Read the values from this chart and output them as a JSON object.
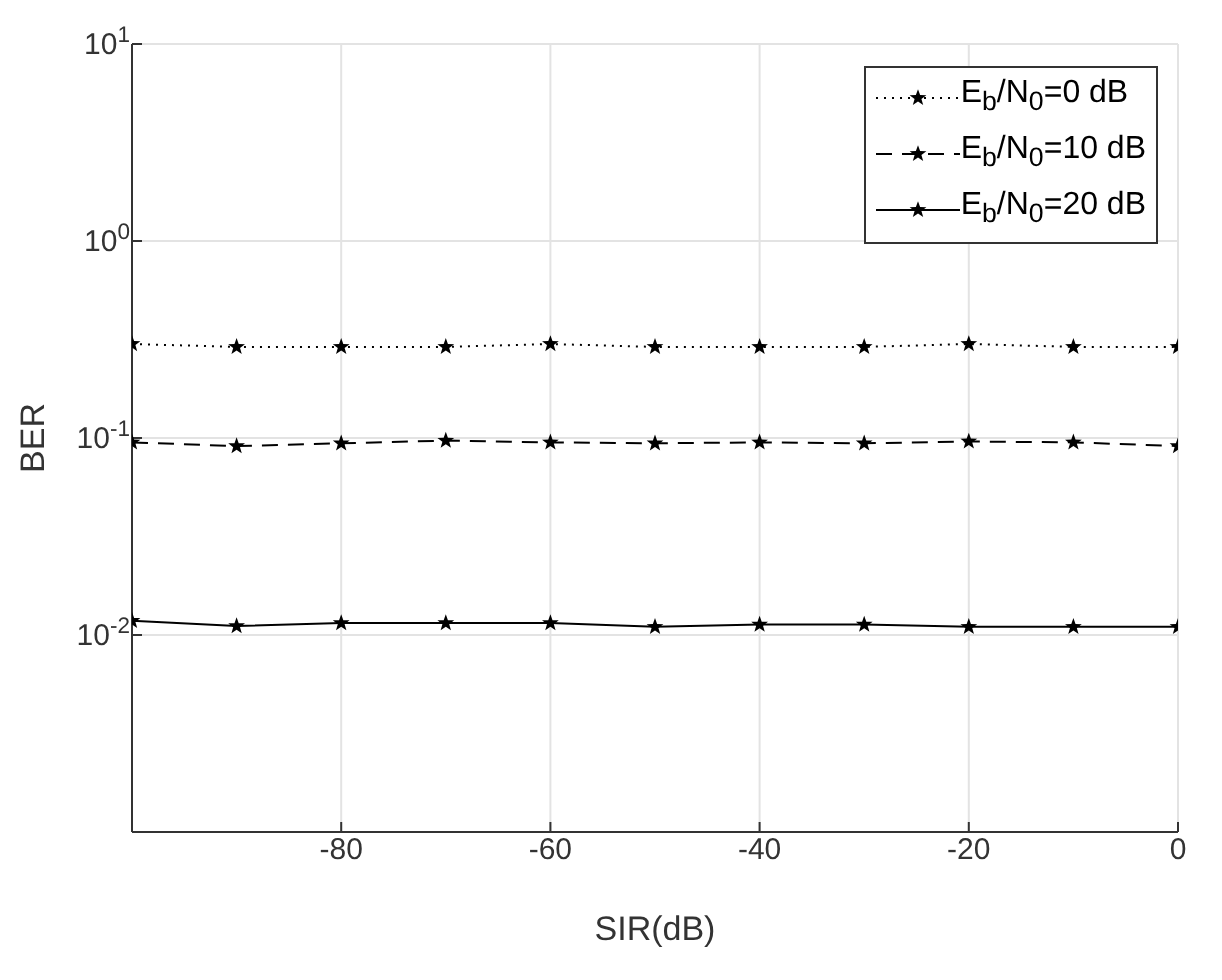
{
  "chart_data": {
    "type": "line",
    "xlabel": "SIR(dB)",
    "ylabel": "BER",
    "x": [
      -100,
      -90,
      -80,
      -70,
      -60,
      -50,
      -40,
      -30,
      -20,
      -10,
      0
    ],
    "series": [
      {
        "name": "E$_{b}$/N$_{0}$=0 dB",
        "color": "#000000",
        "line_style": "dotted",
        "values": [
          0.3,
          0.29,
          0.29,
          0.29,
          0.3,
          0.29,
          0.29,
          0.29,
          0.3,
          0.29,
          0.29
        ]
      },
      {
        "name": "E$_{b}$/N$_{0}$=10 dB",
        "color": "#000000",
        "line_style": "dashed",
        "values": [
          0.095,
          0.091,
          0.094,
          0.097,
          0.095,
          0.094,
          0.095,
          0.094,
          0.096,
          0.095,
          0.091
        ]
      },
      {
        "name": "E$_{b}$/N$_{0}$=20 dB",
        "color": "#000000",
        "line_style": "solid",
        "values": [
          0.0118,
          0.0111,
          0.0115,
          0.0115,
          0.0115,
          0.011,
          0.0113,
          0.0113,
          0.011,
          0.011,
          0.011
        ]
      }
    ],
    "xlim": [
      -100,
      0
    ],
    "xticks": [
      {
        "value": -100,
        "label": null
      },
      -80,
      -60,
      -40,
      -20,
      0
    ],
    "ylim": [
      0.001,
      10
    ],
    "yticks": [
      {
        "value": 0.001,
        "label": null
      },
      {
        "value": 0.01,
        "label": "10$^{-2}$"
      },
      {
        "value": 0.1,
        "label": "10$^{-1}$"
      },
      {
        "value": 1,
        "label": "10$^{0}$"
      },
      {
        "value": 10,
        "label": "10$^{1}$"
      }
    ],
    "log": "y",
    "grid": true,
    "legend": "top right",
    "marker": "star"
  }
}
